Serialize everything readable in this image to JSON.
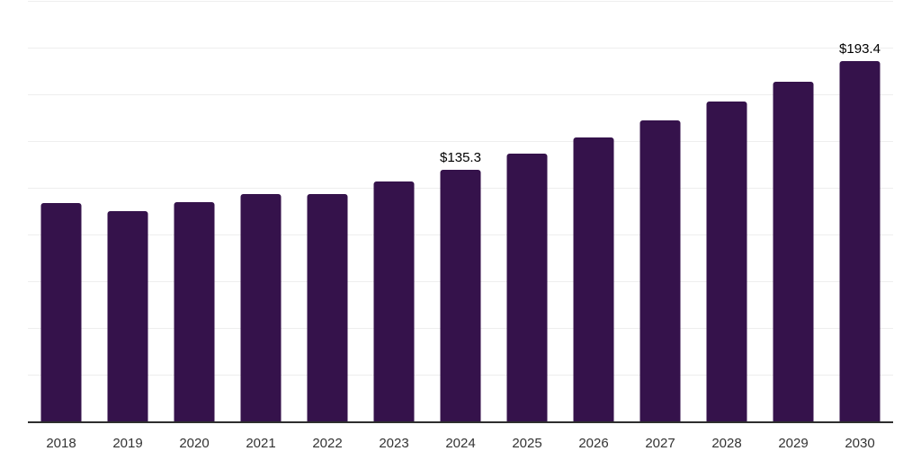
{
  "chart_data": {
    "type": "bar",
    "title": "",
    "xlabel": "",
    "ylabel": "",
    "categories": [
      "2018",
      "2019",
      "2020",
      "2021",
      "2022",
      "2023",
      "2024",
      "2025",
      "2026",
      "2027",
      "2028",
      "2029",
      "2030"
    ],
    "values": [
      117.2,
      112.9,
      118.0,
      122.0,
      122.1,
      129.0,
      135.3,
      143.6,
      152.4,
      161.7,
      171.6,
      182.1,
      193.4
    ],
    "data_labels": {
      "2024": "$135.3",
      "2030": "$193.4"
    },
    "ylim": [
      0,
      225
    ],
    "gridline_step": 25,
    "grid": true,
    "legend": "none",
    "colors": {
      "bar": "#35124B",
      "gridline": "#eeeeee",
      "axis_line": "#2e2e2e",
      "tick_label": "#333333",
      "data_label": "#000000",
      "background": "#ffffff"
    }
  }
}
